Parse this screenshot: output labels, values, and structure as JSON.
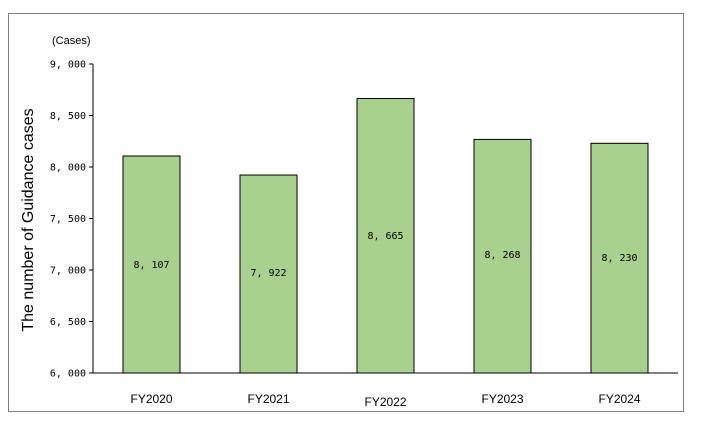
{
  "chart_data": {
    "type": "bar",
    "categories": [
      "FY2020",
      "FY2021",
      "FY2022",
      "FY2023",
      "FY2024"
    ],
    "values": [
      8107,
      7922,
      8665,
      8268,
      8230
    ],
    "data_labels": [
      "8, 107",
      "7, 922",
      "8, 665",
      "8, 268",
      "8, 230"
    ],
    "ylabel": "The number of Guidance cases",
    "unit": "(Cases)",
    "ylim": [
      6000,
      9000
    ],
    "yticks": [
      6000,
      6500,
      7000,
      7500,
      8000,
      8500,
      9000
    ],
    "ytick_labels": [
      "6, 000",
      "6, 500",
      "7, 000",
      "7, 500",
      "8, 000",
      "8, 500",
      "9, 000"
    ],
    "grid": false,
    "bar_color": "#a9d18e",
    "bar_edge_color": "#000000"
  }
}
